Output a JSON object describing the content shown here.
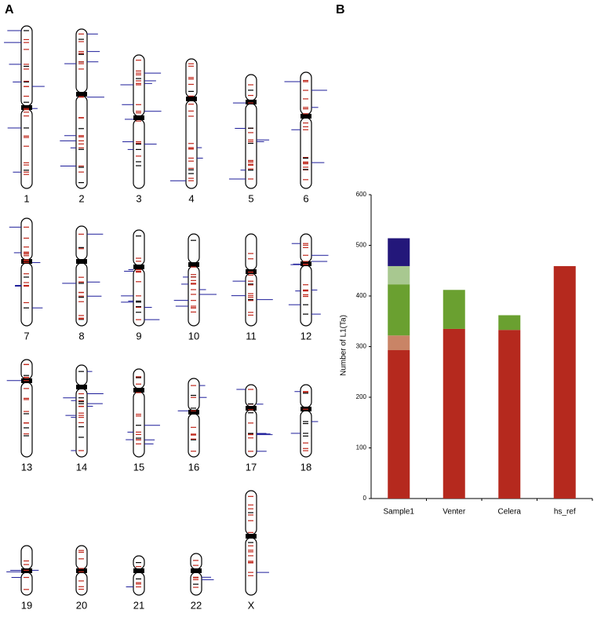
{
  "panel_labels": [
    "A",
    "B"
  ],
  "chromosomes": [
    "1",
    "2",
    "3",
    "4",
    "5",
    "6",
    "7",
    "8",
    "9",
    "10",
    "11",
    "12",
    "13",
    "14",
    "15",
    "16",
    "17",
    "18",
    "19",
    "20",
    "21",
    "22",
    "X"
  ],
  "chart_data": {
    "type": "bar",
    "stacked": true,
    "y_label": "Number of L1(Ta)",
    "categories": [
      "Sample1",
      "Venter",
      "Celera",
      "hs_ref"
    ],
    "series": [
      {
        "color": "#b5291e",
        "values": [
          293,
          335,
          333,
          459
        ]
      },
      {
        "color": "#c98466",
        "values": [
          29,
          null,
          null,
          null
        ]
      },
      {
        "color": "#6aa030",
        "values": [
          101,
          77,
          29,
          null
        ]
      },
      {
        "color": "#a8c890",
        "values": [
          36,
          null,
          null,
          null
        ]
      },
      {
        "color": "#23177a",
        "values": [
          55,
          null,
          null,
          null
        ]
      }
    ],
    "ylim": [
      0,
      600
    ],
    "yticks": [
      0,
      100,
      200,
      300,
      400,
      500,
      600
    ],
    "grid": false
  }
}
